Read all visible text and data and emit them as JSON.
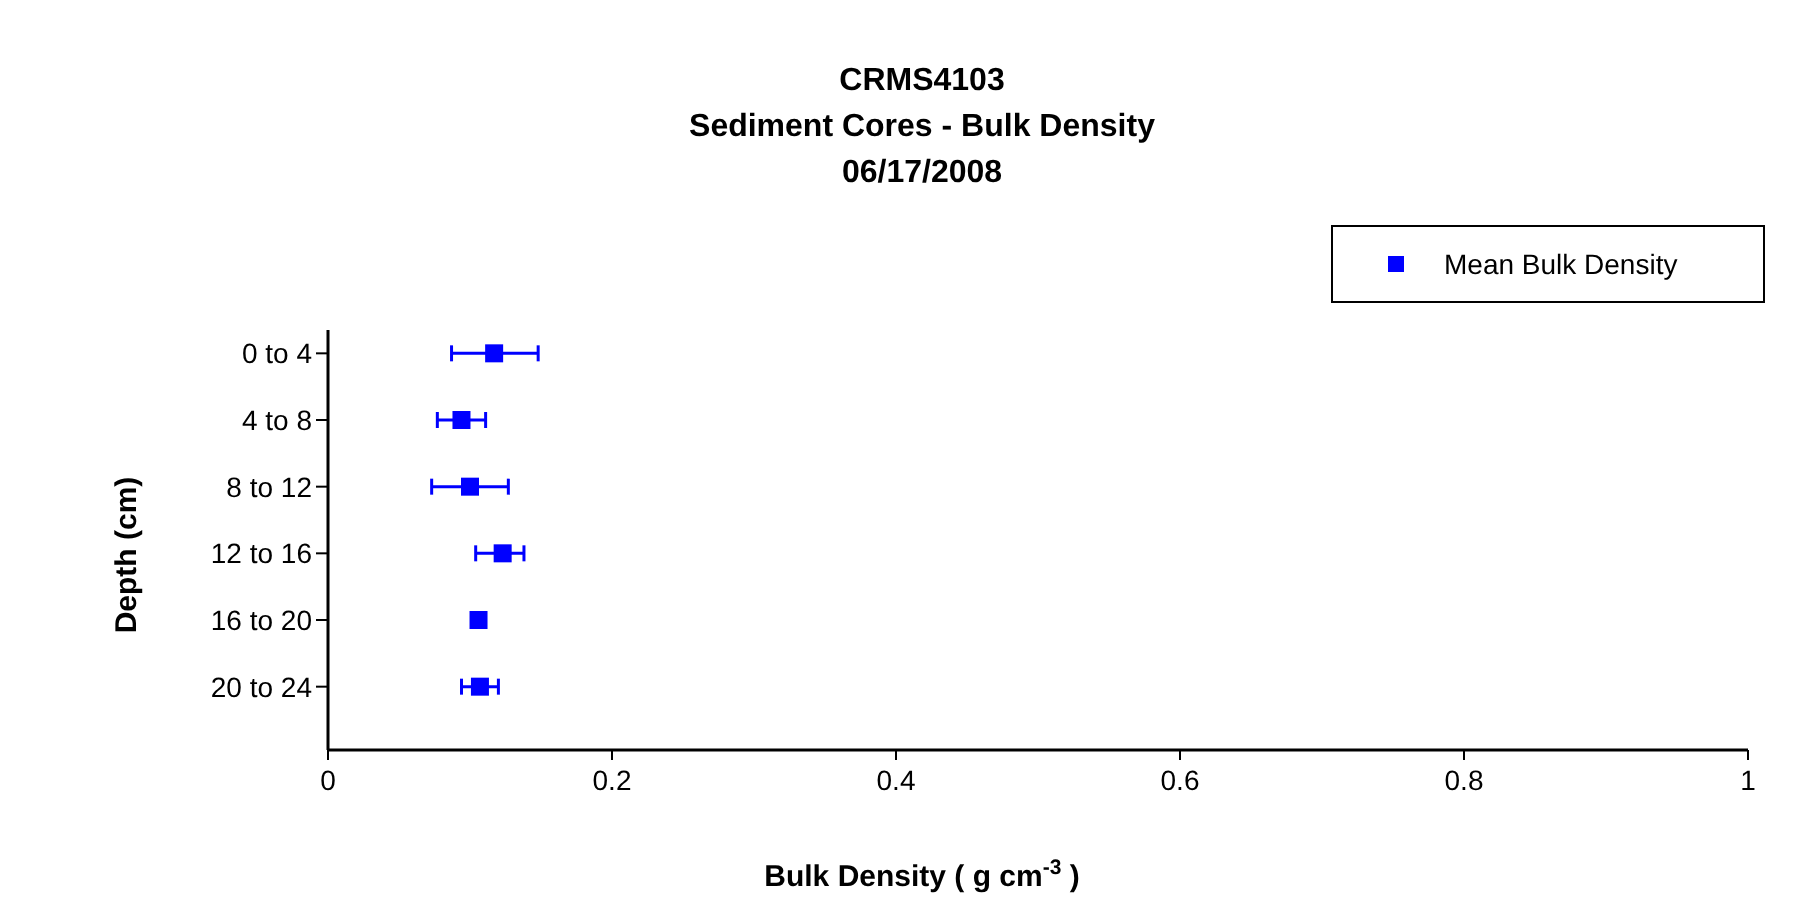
{
  "chart_data": {
    "type": "scatter",
    "orientation": "horizontal",
    "title": "CRMS4103",
    "subtitle": "Sediment Cores - Bulk Density",
    "annotations": [
      "06/17/2008"
    ],
    "xlabel": "Bulk Density ( g cm$^{-3}$ )",
    "ylabel": "Depth (cm)",
    "categories": [
      "0 to 4",
      "4 to 8",
      "8 to 12",
      "12 to 16",
      "16 to 20",
      "20 to 24"
    ],
    "series": [
      {
        "name": "Mean Bulk Density",
        "color": "#0000ff",
        "values": [
          0.117,
          0.094,
          0.1,
          0.123,
          0.106,
          0.107
        ],
        "errors": [
          [
            0.087,
            0.148
          ],
          [
            0.077,
            0.111
          ],
          [
            0.073,
            0.127
          ],
          [
            0.104,
            0.138
          ],
          null,
          [
            0.094,
            0.12
          ]
        ]
      }
    ],
    "xlim": [
      0,
      1
    ],
    "xticks": [
      0,
      0.2,
      0.4,
      0.6,
      0.8,
      1
    ],
    "legend": "top right",
    "marker": "square",
    "grid": false
  }
}
